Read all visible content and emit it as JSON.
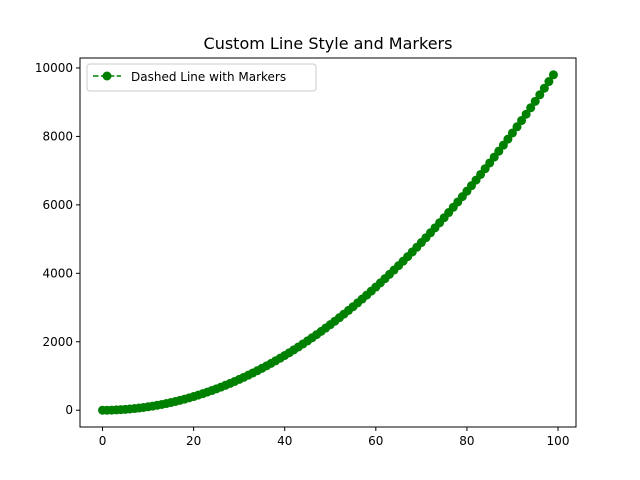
{
  "chart_data": {
    "type": "line",
    "title": "Custom Line Style and Markers",
    "xlabel": "",
    "ylabel": "",
    "xlim": [
      -4.95,
      103.95
    ],
    "ylim": [
      -490.05,
      10291.05
    ],
    "x_ticks": [
      0,
      20,
      40,
      60,
      80,
      100
    ],
    "y_ticks": [
      0,
      2000,
      4000,
      6000,
      8000,
      10000
    ],
    "x_tick_labels": [
      "0",
      "20",
      "40",
      "60",
      "80",
      "100"
    ],
    "y_tick_labels": [
      "0",
      "2000",
      "4000",
      "6000",
      "8000",
      "10000"
    ],
    "grid": false,
    "legend": {
      "position": "upper-left",
      "entries": [
        "Dashed Line with Markers"
      ]
    },
    "series": [
      {
        "name": "Dashed Line with Markers",
        "color": "#008000",
        "line_style": "dashed",
        "marker": "circle",
        "x": [
          0,
          1,
          2,
          3,
          4,
          5,
          6,
          7,
          8,
          9,
          10,
          11,
          12,
          13,
          14,
          15,
          16,
          17,
          18,
          19,
          20,
          21,
          22,
          23,
          24,
          25,
          26,
          27,
          28,
          29,
          30,
          31,
          32,
          33,
          34,
          35,
          36,
          37,
          38,
          39,
          40,
          41,
          42,
          43,
          44,
          45,
          46,
          47,
          48,
          49,
          50,
          51,
          52,
          53,
          54,
          55,
          56,
          57,
          58,
          59,
          60,
          61,
          62,
          63,
          64,
          65,
          66,
          67,
          68,
          69,
          70,
          71,
          72,
          73,
          74,
          75,
          76,
          77,
          78,
          79,
          80,
          81,
          82,
          83,
          84,
          85,
          86,
          87,
          88,
          89,
          90,
          91,
          92,
          93,
          94,
          95,
          96,
          97,
          98,
          99
        ],
        "y": [
          0,
          1,
          4,
          9,
          16,
          25,
          36,
          49,
          64,
          81,
          100,
          121,
          144,
          169,
          196,
          225,
          256,
          289,
          324,
          361,
          400,
          441,
          484,
          529,
          576,
          625,
          676,
          729,
          784,
          841,
          900,
          961,
          1024,
          1089,
          1156,
          1225,
          1296,
          1369,
          1444,
          1521,
          1600,
          1681,
          1764,
          1849,
          1936,
          2025,
          2116,
          2209,
          2304,
          2401,
          2500,
          2601,
          2704,
          2809,
          2916,
          3025,
          3136,
          3249,
          3364,
          3481,
          3600,
          3721,
          3844,
          3969,
          4096,
          4225,
          4356,
          4489,
          4624,
          4761,
          4900,
          5041,
          5184,
          5329,
          5476,
          5625,
          5776,
          5929,
          6084,
          6241,
          6400,
          6561,
          6724,
          6889,
          7056,
          7225,
          7396,
          7569,
          7744,
          7921,
          8100,
          8281,
          8464,
          8649,
          8836,
          9025,
          9216,
          9409,
          9604,
          9801
        ]
      }
    ]
  }
}
